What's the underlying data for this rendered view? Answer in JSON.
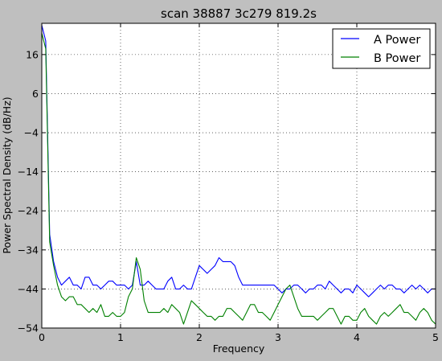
{
  "chart_data": {
    "type": "line",
    "title": "scan 38887 3c279 819.2s",
    "xlabel": "Frequency",
    "ylabel": "Power Spectral Density (dB/Hz)",
    "xlim": [
      0,
      5
    ],
    "ylim": [
      -54,
      24
    ],
    "xticks": [
      0,
      1,
      2,
      3,
      4,
      5
    ],
    "yticks": [
      16,
      6,
      -4,
      -14,
      -24,
      -34,
      -44,
      -54
    ],
    "xtick_labels": [
      "0",
      "1",
      "2",
      "3",
      "4",
      "5"
    ],
    "ytick_labels": [
      "16",
      "6",
      "−4",
      "−14",
      "−24",
      "−34",
      "−44",
      "−54"
    ],
    "grid": true,
    "legend_position": "top-right",
    "series": [
      {
        "name": "A Power",
        "color": "#0000ff",
        "x": [
          0,
          0.05,
          0.1,
          0.15,
          0.2,
          0.25,
          0.3,
          0.35,
          0.4,
          0.45,
          0.5,
          0.55,
          0.6,
          0.65,
          0.7,
          0.75,
          0.8,
          0.85,
          0.9,
          0.95,
          1.0,
          1.05,
          1.1,
          1.15,
          1.2,
          1.25,
          1.3,
          1.35,
          1.4,
          1.45,
          1.5,
          1.55,
          1.6,
          1.65,
          1.7,
          1.75,
          1.8,
          1.85,
          1.9,
          1.95,
          2.0,
          2.05,
          2.1,
          2.15,
          2.2,
          2.25,
          2.3,
          2.35,
          2.4,
          2.45,
          2.5,
          2.55,
          2.6,
          2.65,
          2.7,
          2.75,
          2.8,
          2.85,
          2.9,
          2.95,
          3.0,
          3.05,
          3.1,
          3.15,
          3.2,
          3.25,
          3.3,
          3.35,
          3.4,
          3.45,
          3.5,
          3.55,
          3.6,
          3.65,
          3.7,
          3.75,
          3.8,
          3.85,
          3.9,
          3.95,
          4.0,
          4.05,
          4.1,
          4.15,
          4.2,
          4.25,
          4.3,
          4.35,
          4.4,
          4.45,
          4.5,
          4.55,
          4.6,
          4.65,
          4.7,
          4.75,
          4.8,
          4.85,
          4.9,
          4.95,
          5.0
        ],
        "values": [
          23.5,
          19.5,
          -30,
          -37,
          -41,
          -43,
          -42,
          -41,
          -43,
          -43,
          -44,
          -41,
          -41,
          -43,
          -43,
          -44,
          -43,
          -42,
          -42,
          -43,
          -43,
          -43,
          -44,
          -43,
          -37,
          -43,
          -43,
          -42,
          -43,
          -44,
          -44,
          -44,
          -42,
          -41,
          -44,
          -44,
          -43,
          -44,
          -44,
          -41,
          -38,
          -39,
          -40,
          -39,
          -38,
          -36,
          -37,
          -37,
          -37,
          -38,
          -41,
          -43,
          -43,
          -43,
          -43,
          -43,
          -43,
          -43,
          -43,
          -43,
          -44,
          -45,
          -44,
          -44,
          -43,
          -43,
          -44,
          -45,
          -44,
          -44,
          -43,
          -43,
          -44,
          -42,
          -43,
          -44,
          -45,
          -44,
          -44,
          -45,
          -43,
          -44,
          -45,
          -46,
          -45,
          -44,
          -43,
          -44,
          -43,
          -43,
          -44,
          -44,
          -45,
          -44,
          -43,
          -44,
          -43,
          -44,
          -45,
          -44,
          -44
        ]
      },
      {
        "name": "B Power",
        "color": "#008000",
        "x": [
          0,
          0.05,
          0.1,
          0.15,
          0.2,
          0.25,
          0.3,
          0.35,
          0.4,
          0.45,
          0.5,
          0.55,
          0.6,
          0.65,
          0.7,
          0.75,
          0.8,
          0.85,
          0.9,
          0.95,
          1.0,
          1.05,
          1.1,
          1.15,
          1.2,
          1.25,
          1.3,
          1.35,
          1.4,
          1.45,
          1.5,
          1.55,
          1.6,
          1.65,
          1.7,
          1.75,
          1.8,
          1.85,
          1.9,
          1.95,
          2.0,
          2.05,
          2.1,
          2.15,
          2.2,
          2.25,
          2.3,
          2.35,
          2.4,
          2.45,
          2.5,
          2.55,
          2.6,
          2.65,
          2.7,
          2.75,
          2.8,
          2.85,
          2.9,
          2.95,
          3.0,
          3.05,
          3.1,
          3.15,
          3.2,
          3.25,
          3.3,
          3.35,
          3.4,
          3.45,
          3.5,
          3.55,
          3.6,
          3.65,
          3.7,
          3.75,
          3.8,
          3.85,
          3.9,
          3.95,
          4.0,
          4.05,
          4.1,
          4.15,
          4.2,
          4.25,
          4.3,
          4.35,
          4.4,
          4.45,
          4.5,
          4.55,
          4.6,
          4.65,
          4.7,
          4.75,
          4.8,
          4.85,
          4.9,
          4.95,
          5.0
        ],
        "values": [
          21.5,
          17.5,
          -32,
          -38,
          -43,
          -46,
          -47,
          -46,
          -46,
          -48,
          -48,
          -49,
          -50,
          -49,
          -50,
          -48,
          -51,
          -51,
          -50,
          -51,
          -51,
          -50,
          -46,
          -44,
          -36,
          -39,
          -47,
          -50,
          -50,
          -50,
          -50,
          -49,
          -50,
          -48,
          -49,
          -50,
          -53,
          -50,
          -47,
          -48,
          -49,
          -50,
          -51,
          -51,
          -52,
          -51,
          -51,
          -49,
          -49,
          -50,
          -51,
          -52,
          -50,
          -48,
          -48,
          -50,
          -50,
          -51,
          -52,
          -50,
          -48,
          -46,
          -44,
          -43,
          -46,
          -49,
          -51,
          -51,
          -51,
          -51,
          -52,
          -51,
          -50,
          -49,
          -49,
          -51,
          -53,
          -51,
          -51,
          -52,
          -52,
          -50,
          -49,
          -51,
          -52,
          -53,
          -51,
          -50,
          -51,
          -50,
          -49,
          -48,
          -50,
          -50,
          -51,
          -52,
          -50,
          -49,
          -50,
          -52,
          -53
        ]
      }
    ]
  }
}
